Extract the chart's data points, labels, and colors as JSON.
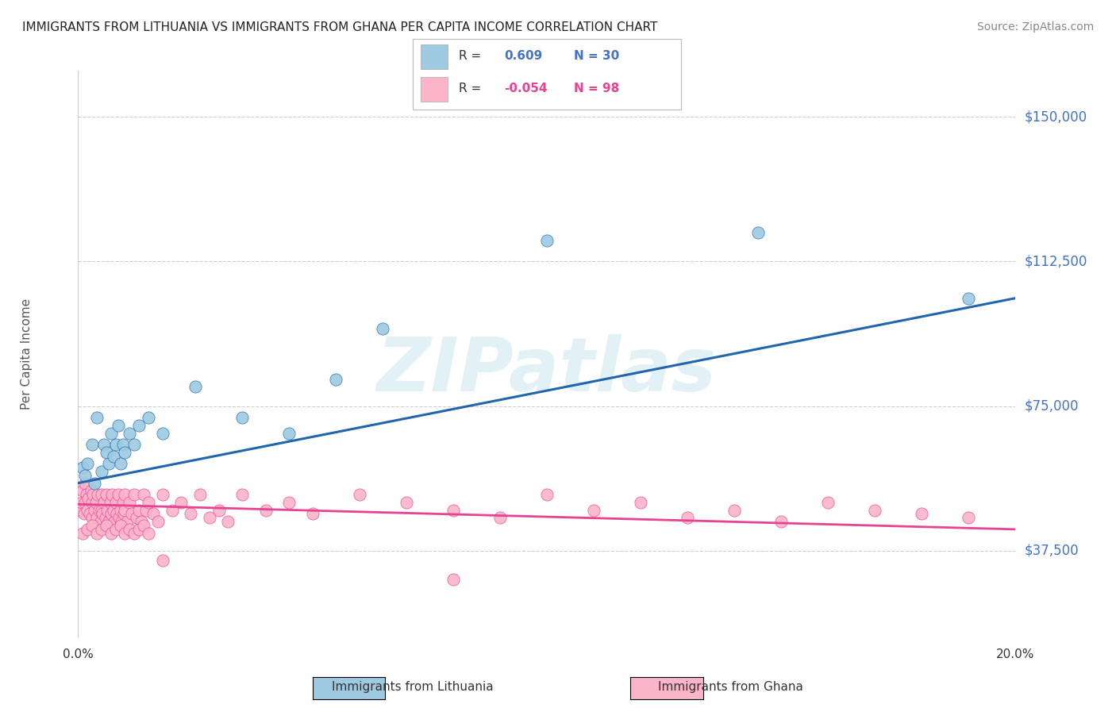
{
  "title": "IMMIGRANTS FROM LITHUANIA VS IMMIGRANTS FROM GHANA PER CAPITA INCOME CORRELATION CHART",
  "source": "Source: ZipAtlas.com",
  "ylabel": "Per Capita Income",
  "yticks": [
    37500,
    75000,
    112500,
    150000
  ],
  "ytick_labels": [
    "$37,500",
    "$75,000",
    "$112,500",
    "$150,000"
  ],
  "xmin": 0.0,
  "xmax": 20.0,
  "ymin": 15000,
  "ymax": 162000,
  "lithuania_color": "#9ecae1",
  "ghana_color": "#fbb4c9",
  "lit_line_color": "#2166ac",
  "ghana_line_color": "#e84393",
  "watermark": "ZIPatlas",
  "background_color": "#ffffff",
  "grid_color": "#cccccc",
  "legend_box_color": "#f0f0f0",
  "lit_R_text": "0.609",
  "lit_N_text": "N = 30",
  "ghana_R_text": "-0.054",
  "ghana_N_text": "N = 98",
  "lit_label": "Immigrants from Lithuania",
  "ghana_label": "Immigrants from Ghana",
  "lit_trend_x0": 0.0,
  "lit_trend_y0": 55000,
  "lit_trend_x1": 20.0,
  "lit_trend_y1": 103000,
  "ghana_trend_x0": 0.0,
  "ghana_trend_y0": 49500,
  "ghana_trend_x1": 20.0,
  "ghana_trend_y1": 43000,
  "lithuania_points_x": [
    0.1,
    0.15,
    0.2,
    0.3,
    0.35,
    0.4,
    0.5,
    0.55,
    0.6,
    0.65,
    0.7,
    0.75,
    0.8,
    0.85,
    0.9,
    0.95,
    1.0,
    1.1,
    1.2,
    1.3,
    1.5,
    1.8,
    2.5,
    3.5,
    4.5,
    5.5,
    6.5,
    10.0,
    14.5,
    19.0
  ],
  "lithuania_points_y": [
    59000,
    57000,
    60000,
    65000,
    55000,
    72000,
    58000,
    65000,
    63000,
    60000,
    68000,
    62000,
    65000,
    70000,
    60000,
    65000,
    63000,
    68000,
    65000,
    70000,
    72000,
    68000,
    80000,
    72000,
    68000,
    82000,
    95000,
    118000,
    120000,
    103000
  ],
  "ghana_points_x": [
    0.05,
    0.08,
    0.1,
    0.12,
    0.15,
    0.15,
    0.18,
    0.2,
    0.22,
    0.25,
    0.28,
    0.3,
    0.3,
    0.32,
    0.35,
    0.38,
    0.4,
    0.42,
    0.45,
    0.48,
    0.5,
    0.5,
    0.52,
    0.55,
    0.58,
    0.6,
    0.62,
    0.65,
    0.68,
    0.7,
    0.72,
    0.75,
    0.78,
    0.8,
    0.82,
    0.85,
    0.88,
    0.9,
    0.92,
    0.95,
    0.98,
    1.0,
    1.0,
    1.05,
    1.1,
    1.15,
    1.2,
    1.25,
    1.3,
    1.35,
    1.4,
    1.45,
    1.5,
    1.6,
    1.7,
    1.8,
    2.0,
    2.2,
    2.4,
    2.6,
    2.8,
    3.0,
    3.2,
    3.5,
    4.0,
    4.5,
    5.0,
    6.0,
    7.0,
    8.0,
    9.0,
    10.0,
    11.0,
    12.0,
    13.0,
    14.0,
    15.0,
    16.0,
    17.0,
    18.0,
    0.1,
    0.2,
    0.3,
    0.4,
    0.5,
    0.6,
    0.7,
    0.8,
    0.9,
    1.0,
    1.1,
    1.2,
    1.3,
    1.4,
    1.5,
    1.8,
    8.0,
    19.0
  ],
  "ghana_points_y": [
    48000,
    50000,
    53000,
    47000,
    55000,
    50000,
    52000,
    48000,
    51000,
    47000,
    53000,
    50000,
    46000,
    52000,
    48000,
    50000,
    46000,
    52000,
    48000,
    45000,
    52000,
    48000,
    47000,
    50000,
    46000,
    52000,
    48000,
    45000,
    50000,
    47000,
    52000,
    48000,
    45000,
    50000,
    47000,
    52000,
    46000,
    48000,
    45000,
    50000,
    47000,
    52000,
    48000,
    45000,
    50000,
    47000,
    52000,
    46000,
    48000,
    45000,
    52000,
    48000,
    50000,
    47000,
    45000,
    52000,
    48000,
    50000,
    47000,
    52000,
    46000,
    48000,
    45000,
    52000,
    48000,
    50000,
    47000,
    52000,
    50000,
    48000,
    46000,
    52000,
    48000,
    50000,
    46000,
    48000,
    45000,
    50000,
    48000,
    47000,
    42000,
    43000,
    44000,
    42000,
    43000,
    44000,
    42000,
    43000,
    44000,
    42000,
    43000,
    42000,
    43000,
    44000,
    42000,
    35000,
    30000,
    46000
  ]
}
